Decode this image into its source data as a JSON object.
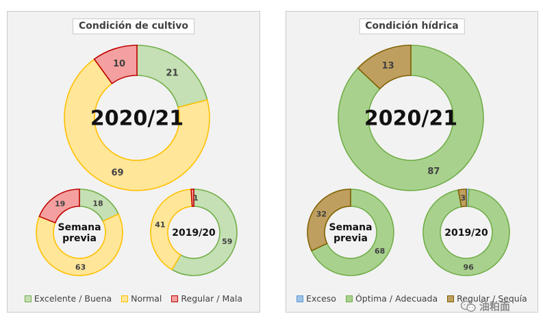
{
  "chart_data": [
    {
      "type": "donut",
      "title": "Condición de cultivo",
      "categories": [
        "Excelente / Buena",
        "Normal",
        "Regular / Mala"
      ],
      "colors": [
        "#c5e0b4",
        "#ffe699",
        "#f4a0a0"
      ],
      "stroke_colors": [
        "#70ad47",
        "#ffc000",
        "#c00000"
      ],
      "rings": [
        {
          "label": "2020/21",
          "values": [
            21,
            69,
            10
          ]
        },
        {
          "label": "Semana previa",
          "values": [
            18,
            63,
            19
          ]
        },
        {
          "label": "2019/20",
          "values": [
            59,
            41,
            1
          ]
        }
      ],
      "legend_position": "bottom"
    },
    {
      "type": "donut",
      "title": "Condición hídrica",
      "categories": [
        "Exceso",
        "Óptima / Adecuada",
        "Regular / Sequía"
      ],
      "colors": [
        "#9dc3e6",
        "#a9d18e",
        "#bf9f60"
      ],
      "stroke_colors": [
        "#5b9bd5",
        "#70ad47",
        "#7f6000"
      ],
      "rings": [
        {
          "label": "2020/21",
          "values": [
            0,
            87,
            13
          ]
        },
        {
          "label": "Semana previa",
          "values": [
            0,
            68,
            32
          ]
        },
        {
          "label": "2019/20",
          "values": [
            1,
            96,
            3
          ]
        }
      ],
      "legend_position": "bottom"
    }
  ],
  "watermark": {
    "text": "油粕面",
    "icon": "wechat-icon"
  }
}
